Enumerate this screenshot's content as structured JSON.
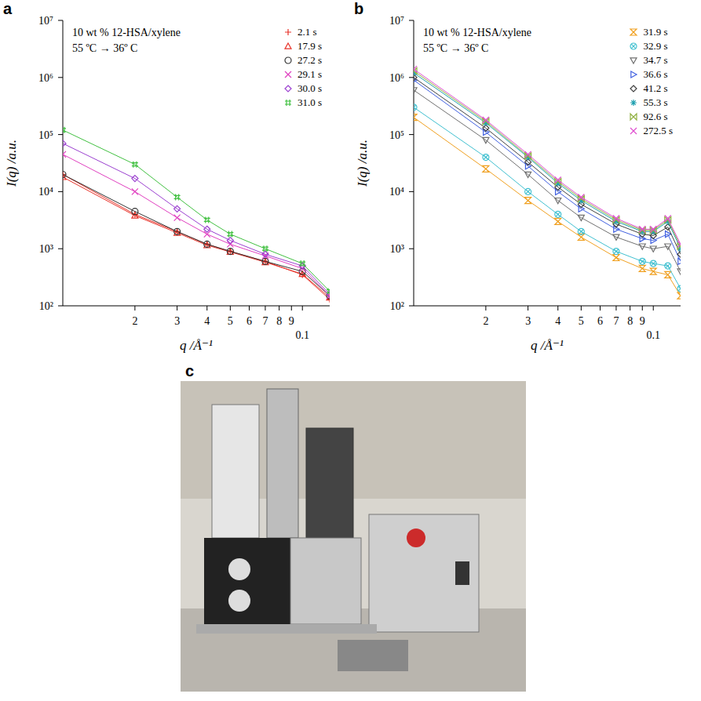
{
  "chart_data": [
    {
      "type": "scatter",
      "panel_label": "a",
      "annotations": [
        "10 wt % 12-HSA/xylene",
        "55 ºC → 36º C"
      ],
      "x_label": "q /Å⁻¹",
      "y_label": "I(q) /a.u.",
      "log": true,
      "grid": false,
      "legend": "upper right",
      "xlim": [
        0.01,
        0.13
      ],
      "xticks": [
        {
          "value": 0.02,
          "label": "2"
        },
        {
          "value": 0.03,
          "label": "3"
        },
        {
          "value": 0.04,
          "label": "4"
        },
        {
          "value": 0.05,
          "label": "5"
        },
        {
          "value": 0.06,
          "label": "6"
        },
        {
          "value": 0.07,
          "label": "7"
        },
        {
          "value": 0.08,
          "label": "8"
        },
        {
          "value": 0.09,
          "label": "9"
        },
        0.1
      ],
      "ylim": [
        100,
        10000000
      ],
      "yticks": [
        {
          "value": 100,
          "label": "10²"
        },
        {
          "value": 1000,
          "label": "10³"
        },
        {
          "value": 10000,
          "label": "10⁴"
        },
        {
          "value": 100000,
          "label": "10⁵"
        },
        {
          "value": 1000000,
          "label": "10⁶"
        },
        {
          "value": 10000000,
          "label": "10⁷"
        }
      ],
      "x": [
        0.01,
        0.02,
        0.03,
        0.04,
        0.05,
        0.07,
        0.1,
        0.13
      ],
      "series": [
        {
          "name": "2.1 s",
          "color": "#e8332a",
          "marker": "plus",
          "values": [
            20000,
            4000,
            2000,
            1200,
            900,
            600,
            350,
            130
          ]
        },
        {
          "name": "17.9 s",
          "color": "#e8332a",
          "marker": "triangle",
          "values": [
            18000,
            3800,
            1900,
            1150,
            880,
            580,
            360,
            140
          ]
        },
        {
          "name": "27.2 s",
          "color": "#333333",
          "marker": "circle",
          "values": [
            20000,
            4500,
            2000,
            1200,
            900,
            600,
            400,
            150
          ]
        },
        {
          "name": "29.1 s",
          "color": "#e040c0",
          "marker": "x",
          "values": [
            45000,
            10000,
            3500,
            1800,
            1200,
            750,
            450,
            150
          ]
        },
        {
          "name": "30.0 s",
          "color": "#9b40d0",
          "marker": "diamond",
          "values": [
            70000,
            17000,
            5000,
            2200,
            1400,
            800,
            500,
            160
          ]
        },
        {
          "name": "31.0 s",
          "color": "#40c040",
          "marker": "hash",
          "values": [
            120000,
            30000,
            8000,
            3200,
            1800,
            1000,
            550,
            180
          ]
        }
      ]
    },
    {
      "type": "scatter",
      "panel_label": "b",
      "annotations": [
        "10 wt % 12-HSA/xylene",
        "55 ºC → 36º C"
      ],
      "x_label": "q /Å⁻¹",
      "y_label": "I(q) /a.u.",
      "log": true,
      "grid": false,
      "legend": "upper right",
      "xlim": [
        0.01,
        0.13
      ],
      "xticks": [
        {
          "value": 0.02,
          "label": "2"
        },
        {
          "value": 0.03,
          "label": "3"
        },
        {
          "value": 0.04,
          "label": "4"
        },
        {
          "value": 0.05,
          "label": "5"
        },
        {
          "value": 0.06,
          "label": "6"
        },
        {
          "value": 0.07,
          "label": "7"
        },
        {
          "value": 0.08,
          "label": "8"
        },
        {
          "value": 0.09,
          "label": "9"
        },
        0.1
      ],
      "ylim": [
        100,
        10000000
      ],
      "yticks": [
        {
          "value": 100,
          "label": "10²"
        },
        {
          "value": 1000,
          "label": "10³"
        },
        {
          "value": 10000,
          "label": "10⁴"
        },
        {
          "value": 100000,
          "label": "10⁵"
        },
        {
          "value": 1000000,
          "label": "10⁶"
        },
        {
          "value": 10000000,
          "label": "10⁷"
        }
      ],
      "x": [
        0.01,
        0.02,
        0.03,
        0.04,
        0.05,
        0.07,
        0.09,
        0.1,
        0.115,
        0.13
      ],
      "series": [
        {
          "name": "31.9 s",
          "color": "#f0a020",
          "marker": "hourglass",
          "values": [
            200000,
            25000,
            7000,
            3000,
            1600,
            700,
            450,
            400,
            350,
            150
          ]
        },
        {
          "name": "32.9 s",
          "color": "#40c0d0",
          "marker": "circle-x",
          "values": [
            300000,
            40000,
            10000,
            4000,
            2000,
            900,
            600,
            550,
            500,
            200
          ]
        },
        {
          "name": "34.7 s",
          "color": "#707070",
          "marker": "triangle-down",
          "values": [
            600000,
            80000,
            20000,
            7000,
            3500,
            1600,
            1100,
            1000,
            1100,
            400
          ]
        },
        {
          "name": "36.6 s",
          "color": "#4060e0",
          "marker": "triangle-right",
          "values": [
            900000,
            110000,
            28000,
            10000,
            5000,
            2200,
            1500,
            1400,
            1800,
            600
          ]
        },
        {
          "name": "41.2 s",
          "color": "#404040",
          "marker": "diamond",
          "values": [
            1000000,
            130000,
            33000,
            12000,
            6000,
            2700,
            1800,
            1700,
            2400,
            800
          ]
        },
        {
          "name": "55.3 s",
          "color": "#20a0b0",
          "marker": "asterisk",
          "values": [
            1200000,
            160000,
            40000,
            14000,
            7000,
            3000,
            2000,
            2000,
            3000,
            1000
          ]
        },
        {
          "name": "92.6 s",
          "color": "#90b040",
          "marker": "bowtie",
          "values": [
            1300000,
            170000,
            42000,
            15000,
            7500,
            3200,
            2100,
            2100,
            3200,
            1100
          ]
        },
        {
          "name": "272.5 s",
          "color": "#e050d0",
          "marker": "x",
          "values": [
            1400000,
            180000,
            45000,
            16000,
            8000,
            3400,
            2200,
            2200,
            3400,
            1200
          ]
        }
      ]
    },
    {
      "type": "image",
      "panel_label": "c"
    }
  ]
}
